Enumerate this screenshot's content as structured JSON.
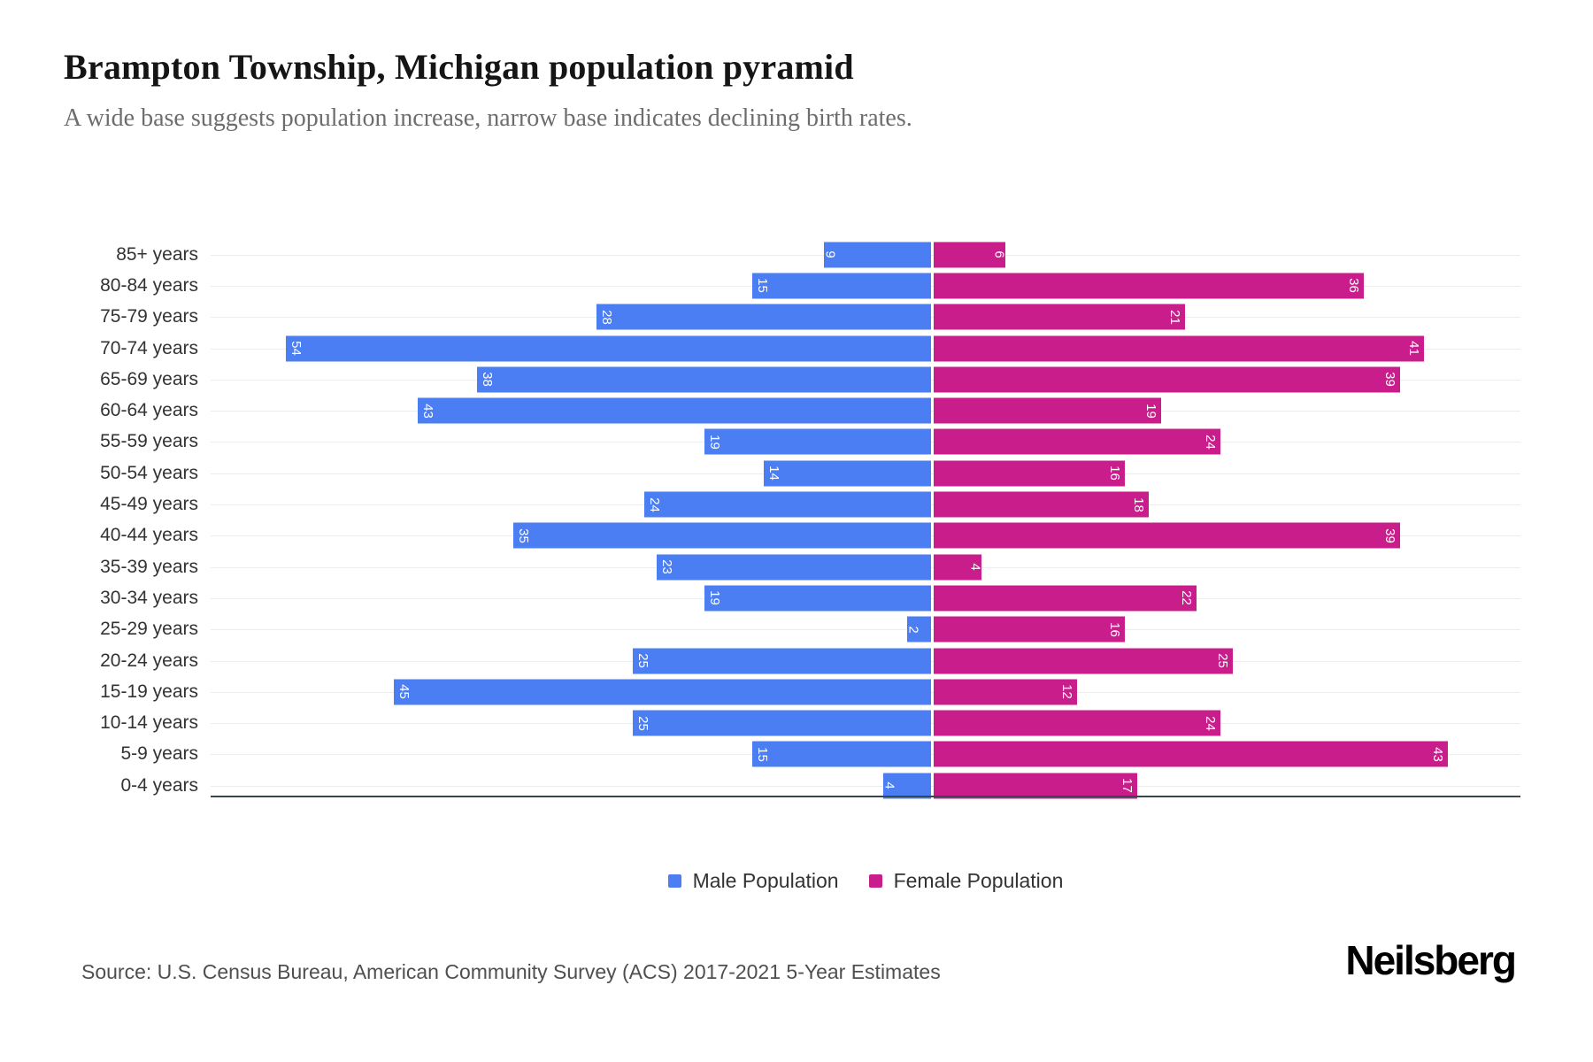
{
  "header": {
    "title": "Brampton Township, Michigan population pyramid",
    "subtitle": "A wide base suggests population increase, narrow base indicates declining birth rates."
  },
  "chart_data": {
    "type": "bar",
    "variant": "population-pyramid",
    "title": "Brampton Township, Michigan population pyramid",
    "categories": [
      "85+ years",
      "80-84 years",
      "75-79 years",
      "70-74 years",
      "65-69 years",
      "60-64 years",
      "55-59 years",
      "50-54 years",
      "45-49 years",
      "40-44 years",
      "35-39 years",
      "30-34 years",
      "25-29 years",
      "20-24 years",
      "15-19 years",
      "10-14 years",
      "5-9 years",
      "0-4 years"
    ],
    "series": [
      {
        "name": "Male Population",
        "side": "left",
        "color": "#4a7ef2",
        "values": [
          9,
          15,
          28,
          54,
          38,
          43,
          19,
          14,
          24,
          35,
          23,
          19,
          2,
          25,
          45,
          25,
          15,
          4
        ]
      },
      {
        "name": "Female Population",
        "side": "right",
        "color": "#c91d8c",
        "values": [
          6,
          36,
          21,
          41,
          39,
          19,
          24,
          16,
          18,
          39,
          4,
          22,
          16,
          25,
          12,
          24,
          43,
          17
        ]
      }
    ],
    "xlabel": "",
    "ylabel": "",
    "value_labels": "inside-far-end, rotated 90deg, white",
    "grid": true,
    "legend_position": "bottom-center",
    "left_axis_max": 61,
    "right_axis_max": 50
  },
  "legend": {
    "male_label": "Male Population",
    "female_label": "Female Population"
  },
  "footer": {
    "source": "Source: U.S. Census Bureau, American Community Survey (ACS) 2017-2021 5-Year Estimates",
    "brand": "Neilsberg"
  },
  "colors": {
    "male": "#4a7ef2",
    "female": "#c91d8c",
    "title_text": "#151515",
    "subtitle_text": "#6d6d6d",
    "axis_line": "#37474f",
    "gridline": "#ededed",
    "category_text": "#333333",
    "bar_value_text": "#ffffff"
  }
}
